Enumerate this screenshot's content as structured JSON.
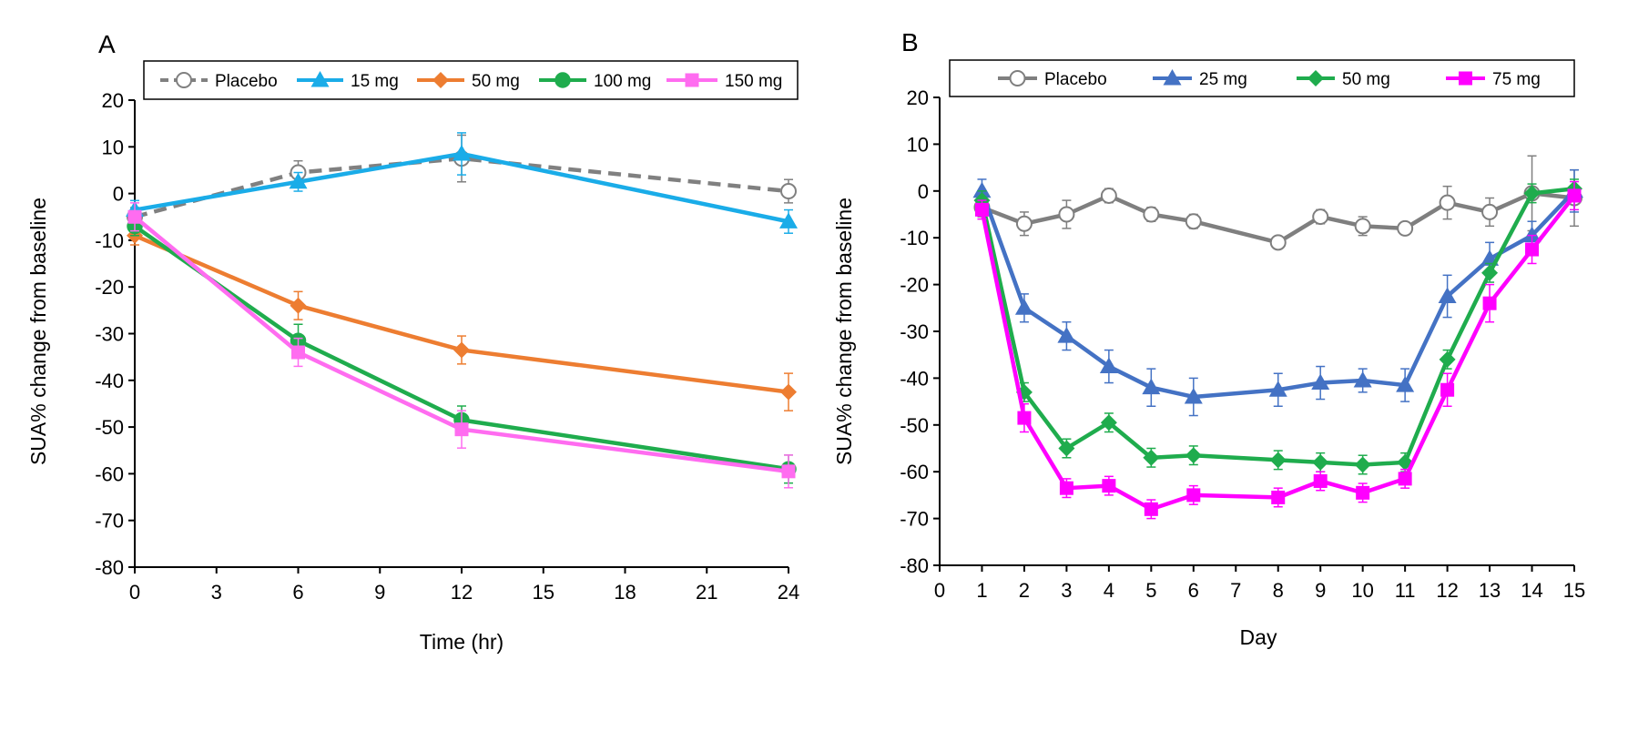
{
  "chart_data": [
    {
      "panel": "A",
      "type": "line",
      "xlabel": "Time (hr)",
      "ylabel": "SUA% change from baseline",
      "xlim": [
        0,
        24
      ],
      "ylim": [
        -80,
        20
      ],
      "xticks": [
        0,
        3,
        6,
        9,
        12,
        15,
        18,
        21,
        24
      ],
      "yticks": [
        20,
        10,
        0,
        -10,
        -20,
        -30,
        -40,
        -50,
        -60,
        -70,
        -80
      ],
      "grid": false,
      "legend_position": "top",
      "series": [
        {
          "name": "Placebo",
          "color": "#808080",
          "dashed": true,
          "marker": "circle-open",
          "x": [
            0,
            6,
            12,
            24
          ],
          "y": [
            -5,
            4.5,
            7.5,
            0.5
          ],
          "err": [
            2,
            2.5,
            5,
            2.5
          ]
        },
        {
          "name": "15 mg",
          "color": "#1aace8",
          "dashed": false,
          "marker": "triangle",
          "x": [
            0,
            6,
            12,
            24
          ],
          "y": [
            -3.5,
            2.5,
            8.5,
            -6
          ],
          "err": [
            2,
            2,
            4.5,
            2.5
          ]
        },
        {
          "name": "50 mg",
          "color": "#ed7d31",
          "dashed": false,
          "marker": "diamond",
          "x": [
            0,
            6,
            12,
            24
          ],
          "y": [
            -9,
            -24,
            -33.5,
            -42.5
          ],
          "err": [
            2,
            3,
            3,
            4
          ]
        },
        {
          "name": "100 mg",
          "color": "#1fac4d",
          "dashed": false,
          "marker": "circle",
          "x": [
            0,
            6,
            12,
            24
          ],
          "y": [
            -7,
            -31.5,
            -48.5,
            -59
          ],
          "err": [
            2,
            3.5,
            3,
            3
          ]
        },
        {
          "name": "150 mg",
          "color": "#ff6cf0",
          "dashed": false,
          "marker": "square",
          "x": [
            0,
            6,
            12,
            24
          ],
          "y": [
            -5,
            -34,
            -50.5,
            -59.5
          ],
          "err": [
            3,
            3,
            4,
            3.5
          ]
        }
      ]
    },
    {
      "panel": "B",
      "type": "line",
      "xlabel": "Day",
      "ylabel": "SUA% change from baseline",
      "xlim": [
        0,
        15
      ],
      "ylim": [
        -80,
        20
      ],
      "xticks": [
        0,
        1,
        2,
        3,
        4,
        5,
        6,
        7,
        8,
        9,
        10,
        11,
        12,
        13,
        14,
        15
      ],
      "yticks": [
        20,
        10,
        0,
        -10,
        -20,
        -30,
        -40,
        -50,
        -60,
        -70,
        -80
      ],
      "grid": false,
      "legend_position": "top",
      "series": [
        {
          "name": "Placebo",
          "color": "#7f7f7f",
          "dashed": false,
          "marker": "circle-open",
          "x": [
            1,
            2,
            3,
            4,
            5,
            6,
            8,
            9,
            10,
            11,
            12,
            13,
            14,
            15
          ],
          "y": [
            -3.5,
            -7,
            -5,
            -1,
            -5,
            -6.5,
            -11,
            -5.5,
            -7.5,
            -8,
            -2.5,
            -4.5,
            -0.5,
            -1.5
          ],
          "err": [
            2,
            2.5,
            3,
            1.5,
            1.5,
            1.5,
            1,
            1.5,
            2,
            1,
            3.5,
            3,
            8,
            6
          ]
        },
        {
          "name": "25 mg",
          "color": "#4472c4",
          "dashed": false,
          "marker": "triangle",
          "x": [
            1,
            2,
            3,
            4,
            5,
            6,
            8,
            9,
            10,
            11,
            12,
            13,
            14,
            15
          ],
          "y": [
            0,
            -25,
            -31,
            -37.5,
            -42,
            -44,
            -42.5,
            -41,
            -40.5,
            -41.5,
            -22.5,
            -14.5,
            -9.5,
            0
          ],
          "err": [
            2.5,
            3,
            3,
            3.5,
            4,
            4,
            3.5,
            3.5,
            2.5,
            3.5,
            4.5,
            3.5,
            3,
            4.5
          ]
        },
        {
          "name": "50 mg",
          "color": "#1fac4d",
          "dashed": false,
          "marker": "diamond",
          "x": [
            1,
            2,
            3,
            4,
            5,
            6,
            8,
            9,
            10,
            11,
            12,
            13,
            14,
            15
          ],
          "y": [
            -2,
            -43,
            -55,
            -49.5,
            -57,
            -56.5,
            -57.5,
            -58,
            -58.5,
            -58,
            -36,
            -17.5,
            -0.5,
            0.5
          ],
          "err": [
            2,
            2,
            2,
            2,
            2,
            2,
            2,
            2,
            2,
            2,
            2,
            2,
            2,
            2
          ]
        },
        {
          "name": "75 mg",
          "color": "#ff00ff",
          "dashed": false,
          "marker": "square",
          "x": [
            1,
            2,
            3,
            4,
            5,
            6,
            8,
            9,
            10,
            11,
            12,
            13,
            14,
            15
          ],
          "y": [
            -4,
            -48.5,
            -63.5,
            -63,
            -68,
            -65,
            -65.5,
            -62,
            -64.5,
            -61.5,
            -42.5,
            -24,
            -12.5,
            -1
          ],
          "err": [
            2,
            3,
            2,
            2,
            2,
            2,
            2,
            2,
            2,
            2,
            3.5,
            4,
            3,
            3
          ]
        }
      ]
    }
  ]
}
